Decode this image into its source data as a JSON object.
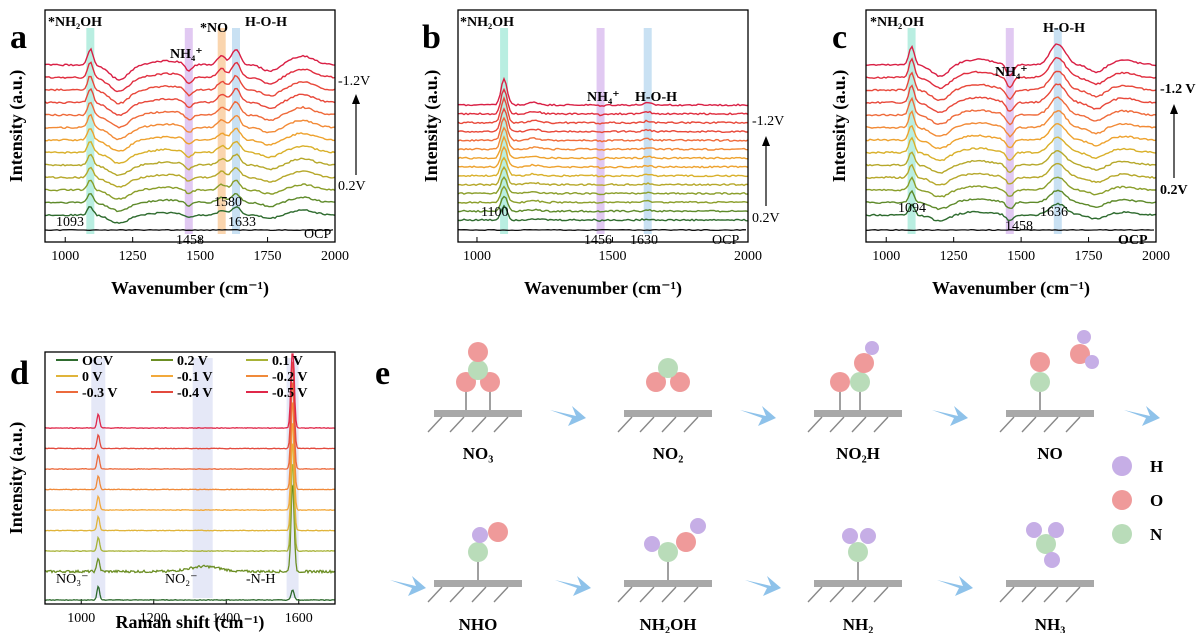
{
  "panels": {
    "a": {
      "letter": "a",
      "xlabel": "Wavenumber (cm⁻¹)",
      "ylabel": "Intensity (a.u.)",
      "xticks": [
        "1000",
        "1250",
        "1500",
        "1750",
        "2000"
      ],
      "xlim": [
        925,
        2000
      ],
      "peak_labels_top": [
        "*NH₂OH",
        "NH₄⁺",
        "*NO",
        "H-O-H"
      ],
      "peak_values": [
        "1093",
        "1458",
        "1580",
        "1633"
      ],
      "bottom_trace": "OCP",
      "arrow_top": "-1.2V",
      "arrow_bottom": "0.2V"
    },
    "b": {
      "letter": "b",
      "xlabel": "Wavenumber (cm⁻¹)",
      "ylabel": "Intensity (a.u.)",
      "xticks": [
        "1000",
        "1500",
        "2000"
      ],
      "xlim": [
        930,
        2000
      ],
      "peak_labels_top": [
        "*NH₂OH",
        "NH₄⁺",
        "H-O-H"
      ],
      "peak_values": [
        "1100",
        "1456",
        "1630"
      ],
      "bottom_trace": "OCP",
      "arrow_top": "-1.2V",
      "arrow_bottom": "0.2V"
    },
    "c": {
      "letter": "c",
      "xlabel": "Wavenumber (cm⁻¹)",
      "ylabel": "Intensity (a.u.)",
      "xticks": [
        "1000",
        "1250",
        "1500",
        "1750",
        "2000"
      ],
      "xlim": [
        925,
        2000
      ],
      "peak_labels_top": [
        "*NH₂OH",
        "NH₄⁺",
        "H-O-H"
      ],
      "peak_values": [
        "1094",
        "1458",
        "1636"
      ],
      "bottom_trace": "OCP",
      "arrow_top": "-1.2 V",
      "arrow_bottom": "0.2V"
    },
    "d": {
      "letter": "d",
      "xlabel": "Raman shift (cm⁻¹)",
      "ylabel": "Intensity (a.u.)",
      "xticks": [
        "1000",
        "1200",
        "1400",
        "1600"
      ],
      "xlim": [
        900,
        1700
      ],
      "peak_labels": [
        "NO₃⁻",
        "NO₂⁻",
        "-N-H"
      ],
      "legend": [
        "OCV",
        "0.2 V",
        "0.1 V",
        "0 V",
        "-0.1 V",
        "-0.2 V",
        "-0.3 V",
        "-0.4 V",
        "-0.5 V"
      ]
    },
    "e": {
      "letter": "e",
      "steps_row1": [
        "NO₃",
        "NO₂",
        "NO₂H",
        "NO"
      ],
      "steps_row2": [
        "NHO",
        "NH₂OH",
        "NH₂",
        "NH₃"
      ],
      "legend": [
        "H",
        "O",
        "N"
      ]
    }
  },
  "colors": {
    "H": "#c6aee6",
    "O": "#ef9a9a",
    "N": "#b9dcb9",
    "arrow": "#8ec2ea",
    "surface": "#a8a8a8",
    "series": [
      "#2e6b2e",
      "#5e8a2a",
      "#8a9e2a",
      "#b6a82a",
      "#d9b02a",
      "#eea22e",
      "#f28a36",
      "#ef6a3a",
      "#e8483a",
      "#e02d3e",
      "#d91f44"
    ]
  },
  "chart_data": [
    {
      "type": "line",
      "panel": "a",
      "xlabel": "Wavenumber (cm⁻¹)",
      "ylabel": "Intensity (a.u.)",
      "xlim": [
        925,
        2000
      ],
      "bands": [
        {
          "label": "*NH₂OH",
          "x": 1093,
          "color": "#7fe0c9"
        },
        {
          "label": "NH₄⁺",
          "x": 1458,
          "color": "#c89ce8"
        },
        {
          "label": "*NO",
          "x": 1580,
          "color": "#f6b26b"
        },
        {
          "label": "H-O-H",
          "x": 1633,
          "color": "#9dc9ea"
        }
      ],
      "peaks": [
        {
          "x": 1093,
          "h": 1.0,
          "w": 14,
          "sign": 1
        },
        {
          "x": 1200,
          "h": 0.9,
          "w": 50,
          "sign": -1
        },
        {
          "x": 1380,
          "h": 0.25,
          "w": 80,
          "sign": 1
        },
        {
          "x": 1458,
          "h": 0.45,
          "w": 18,
          "sign": -1
        },
        {
          "x": 1580,
          "h": 0.55,
          "w": 22,
          "sign": 1
        },
        {
          "x": 1633,
          "h": 0.95,
          "w": 22,
          "sign": 1
        },
        {
          "x": 1760,
          "h": 0.4,
          "w": 40,
          "sign": -1
        },
        {
          "x": 1880,
          "h": 0.55,
          "w": 60,
          "sign": 1
        }
      ],
      "series_count": 13,
      "ocp": true
    },
    {
      "type": "line",
      "panel": "b",
      "xlabel": "Wavenumber (cm⁻¹)",
      "ylabel": "Intensity (a.u.)",
      "xlim": [
        930,
        2000
      ],
      "bands": [
        {
          "label": "*NH₂OH",
          "x": 1100,
          "color": "#7fe0c9"
        },
        {
          "label": "NH₄⁺",
          "x": 1456,
          "color": "#c89ce8"
        },
        {
          "label": "H-O-H",
          "x": 1630,
          "color": "#9dc9ea"
        }
      ],
      "peaks": [
        {
          "x": 1100,
          "h": 2.6,
          "w": 16,
          "sign": 1
        },
        {
          "x": 1210,
          "h": 0.25,
          "w": 30,
          "sign": 1
        },
        {
          "x": 1456,
          "h": 0.12,
          "w": 14,
          "sign": -1
        },
        {
          "x": 1630,
          "h": 0.18,
          "w": 20,
          "sign": 1
        }
      ],
      "series_count": 14,
      "ocp": true
    },
    {
      "type": "line",
      "panel": "c",
      "xlabel": "Wavenumber (cm⁻¹)",
      "ylabel": "Intensity (a.u.)",
      "xlim": [
        925,
        2000
      ],
      "bands": [
        {
          "label": "*NH₂OH",
          "x": 1094,
          "color": "#7fe0c9"
        },
        {
          "label": "NH₄⁺",
          "x": 1458,
          "color": "#c89ce8"
        },
        {
          "label": "H-O-H",
          "x": 1636,
          "color": "#9dc9ea"
        }
      ],
      "peaks": [
        {
          "x": 1094,
          "h": 1.2,
          "w": 14,
          "sign": 1
        },
        {
          "x": 1200,
          "h": 0.7,
          "w": 45,
          "sign": -1
        },
        {
          "x": 1340,
          "h": 0.35,
          "w": 80,
          "sign": 1
        },
        {
          "x": 1458,
          "h": 0.7,
          "w": 18,
          "sign": -1
        },
        {
          "x": 1636,
          "h": 1.3,
          "w": 40,
          "sign": 1
        },
        {
          "x": 1780,
          "h": 0.45,
          "w": 40,
          "sign": -1
        },
        {
          "x": 1880,
          "h": 0.3,
          "w": 60,
          "sign": 1
        }
      ],
      "series_count": 13,
      "ocp": true
    },
    {
      "type": "line",
      "panel": "d",
      "xlabel": "Raman shift (cm⁻¹)",
      "ylabel": "Intensity (a.u.)",
      "xlim": [
        900,
        1700
      ],
      "bands": [
        {
          "label": "NO₃⁻",
          "x": 1047
        },
        {
          "label": "NO₂⁻",
          "x": 1335
        },
        {
          "label": "-N-H",
          "x": 1583
        }
      ],
      "series": [
        {
          "name": "OCV",
          "color": "#2e6b2e"
        },
        {
          "name": "0.2 V",
          "color": "#6b8e23"
        },
        {
          "name": "0.1 V",
          "color": "#a7b236"
        },
        {
          "name": "0 V",
          "color": "#e0b43a"
        },
        {
          "name": "-0.1 V",
          "color": "#f2a93b"
        },
        {
          "name": "-0.2 V",
          "color": "#f08a3a"
        },
        {
          "name": "-0.3 V",
          "color": "#ec6a3c"
        },
        {
          "name": "-0.4 V",
          "color": "#e34a3e"
        },
        {
          "name": "-0.5 V",
          "color": "#e0284a"
        }
      ]
    }
  ]
}
